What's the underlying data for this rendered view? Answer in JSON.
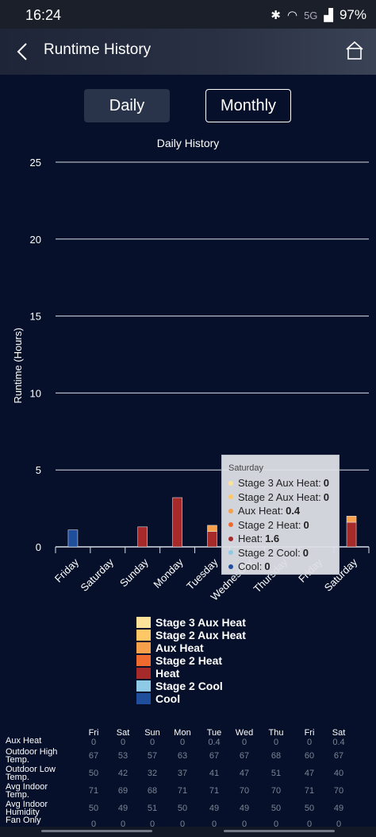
{
  "status_bar": {
    "time": "16:24",
    "network": "5G",
    "battery": "97%"
  },
  "header": {
    "title": "Runtime History"
  },
  "toggles": {
    "daily": "Daily",
    "monthly": "Monthly"
  },
  "chart_data": {
    "type": "bar",
    "title": "Daily History",
    "ylabel": "Runtime (Hours)",
    "xlabel": "",
    "ylim": [
      0,
      25
    ],
    "yticks": [
      0,
      5,
      10,
      15,
      20,
      25
    ],
    "categories": [
      "Friday",
      "Saturday",
      "Sunday",
      "Monday",
      "Tuesday",
      "Wednesday",
      "Thursday",
      "Friday",
      "Saturday"
    ],
    "series": [
      {
        "name": "Cool",
        "color": "#1f4e9c",
        "values": [
          1.1,
          0,
          0,
          0,
          0,
          0,
          0,
          0,
          0
        ]
      },
      {
        "name": "Stage 2 Cool",
        "color": "#8ecae6",
        "values": [
          0,
          0,
          0,
          0,
          0,
          0,
          0,
          0,
          0
        ]
      },
      {
        "name": "Heat",
        "color": "#a62a2a",
        "values": [
          0,
          0,
          1.3,
          3.2,
          1.0,
          0,
          0,
          0,
          1.6
        ]
      },
      {
        "name": "Stage 2 Heat",
        "color": "#ef6a2e",
        "values": [
          0,
          0,
          0,
          0,
          0,
          0,
          0,
          0,
          0
        ]
      },
      {
        "name": "Aux Heat",
        "color": "#f6a04b",
        "values": [
          0,
          0,
          0,
          0,
          0.4,
          0,
          0,
          0,
          0.4
        ]
      },
      {
        "name": "Stage 2 Aux Heat",
        "color": "#ffc766",
        "values": [
          0,
          0,
          0,
          0,
          0,
          0,
          0,
          0,
          0
        ]
      },
      {
        "name": "Stage 3 Aux Heat",
        "color": "#ffe29a",
        "values": [
          0,
          0,
          0,
          0,
          0,
          0,
          0,
          0,
          0
        ]
      }
    ],
    "legend_position": "bottom",
    "grid": true
  },
  "legend": [
    {
      "label": "Stage 3 Aux Heat",
      "color": "#ffe29a"
    },
    {
      "label": "Stage 2 Aux Heat",
      "color": "#ffc766"
    },
    {
      "label": "Aux Heat",
      "color": "#f6a04b"
    },
    {
      "label": "Stage 2 Heat",
      "color": "#ef6a2e"
    },
    {
      "label": "Heat",
      "color": "#a62a2a"
    },
    {
      "label": "Stage 2 Cool",
      "color": "#8ecae6"
    },
    {
      "label": "Cool",
      "color": "#1f4e9c"
    }
  ],
  "tooltip": {
    "title": "Saturday",
    "rows": [
      {
        "label": "Stage 3 Aux Heat:",
        "value": "0",
        "color": "#ffe29a"
      },
      {
        "label": "Stage 2 Aux Heat:",
        "value": "0",
        "color": "#ffc766"
      },
      {
        "label": "Aux Heat:",
        "value": "0.4",
        "color": "#f6a04b"
      },
      {
        "label": "Stage 2 Heat:",
        "value": "0",
        "color": "#ef6a2e"
      },
      {
        "label": "Heat:",
        "value": "1.6",
        "color": "#a62a2a"
      },
      {
        "label": "Stage 2 Cool:",
        "value": "0",
        "color": "#8ecae6"
      },
      {
        "label": "Cool:",
        "value": "0",
        "color": "#1f4e9c"
      }
    ]
  },
  "table": {
    "days": [
      "Fri",
      "Sat",
      "Sun",
      "Mon",
      "Tue",
      "Wed",
      "Thu",
      "Fri",
      "Sat"
    ],
    "rows": [
      {
        "label": "Aux Heat",
        "values": [
          "0",
          "0",
          "0",
          "0",
          "0.4",
          "0",
          "0",
          "0",
          "0.4"
        ]
      },
      {
        "label": "Outdoor High Temp.",
        "values": [
          "67",
          "53",
          "57",
          "63",
          "67",
          "67",
          "68",
          "60",
          "67"
        ]
      },
      {
        "label": "Outdoor Low Temp.",
        "values": [
          "50",
          "42",
          "32",
          "37",
          "41",
          "47",
          "51",
          "47",
          "40"
        ]
      },
      {
        "label": "Avg Indoor Temp.",
        "values": [
          "71",
          "69",
          "68",
          "71",
          "71",
          "70",
          "70",
          "71",
          "70"
        ]
      },
      {
        "label": "Avg Indoor Humidity",
        "values": [
          "50",
          "49",
          "51",
          "50",
          "49",
          "49",
          "50",
          "50",
          "49"
        ]
      },
      {
        "label": "Fan Only",
        "values": [
          "0",
          "0",
          "0",
          "0",
          "0",
          "0",
          "0",
          "0",
          "0"
        ]
      }
    ]
  }
}
